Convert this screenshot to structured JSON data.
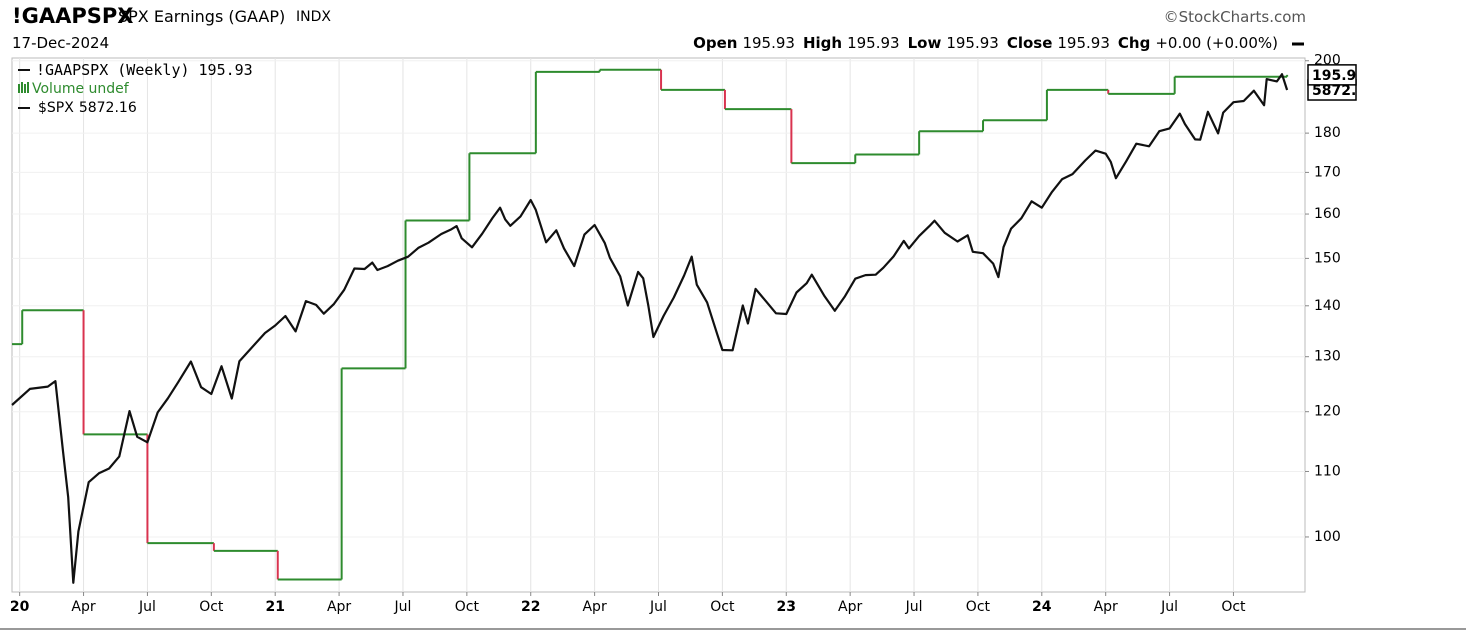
{
  "header": {
    "symbol": "!GAAPSPX",
    "description": "SPX Earnings (GAAP)",
    "exchange": "INDX",
    "date": "17-Dec-2024",
    "copyright": "©StockCharts.com",
    "quote": [
      {
        "label": "Open",
        "value": "195.93"
      },
      {
        "label": "High",
        "value": "195.93"
      },
      {
        "label": "Low",
        "value": "195.93"
      },
      {
        "label": "Close",
        "value": "195.93"
      },
      {
        "label": "Chg",
        "value": "+0.00 (+0.00%)"
      }
    ],
    "legend_note": "Volume undef"
  },
  "chart_data": {
    "type": "line",
    "log_scale": true,
    "grid": true,
    "xlim": [
      2019.97,
      2025.03
    ],
    "xticks": [
      {
        "value": 2020,
        "label": "20"
      },
      {
        "value": 2020.25,
        "label": "Apr"
      },
      {
        "value": 2020.5,
        "label": "Jul"
      },
      {
        "value": 2020.75,
        "label": "Oct"
      },
      {
        "value": 2021,
        "label": "21"
      },
      {
        "value": 2021.25,
        "label": "Apr"
      },
      {
        "value": 2021.5,
        "label": "Jul"
      },
      {
        "value": 2021.75,
        "label": "Oct"
      },
      {
        "value": 2022,
        "label": "22"
      },
      {
        "value": 2022.25,
        "label": "Apr"
      },
      {
        "value": 2022.5,
        "label": "Jul"
      },
      {
        "value": 2022.75,
        "label": "Oct"
      },
      {
        "value": 2023,
        "label": "23"
      },
      {
        "value": 2023.25,
        "label": "Apr"
      },
      {
        "value": 2023.5,
        "label": "Jul"
      },
      {
        "value": 2023.75,
        "label": "Oct"
      },
      {
        "value": 2024,
        "label": "24"
      },
      {
        "value": 2024.25,
        "label": "Apr"
      },
      {
        "value": 2024.5,
        "label": "Jul"
      },
      {
        "value": 2024.75,
        "label": "Oct"
      }
    ],
    "ylim": [
      92.3,
      200.8
    ],
    "yticks": [
      100,
      110,
      120,
      130,
      140,
      150,
      160,
      170,
      180,
      200
    ],
    "y2lim": [
      2265,
      6240
    ],
    "series": [
      {
        "name": "!GAAPSPX (Weekly)",
        "style": "step",
        "color": "#2e8b2e",
        "down_color": "#d9334f",
        "x": [
          2019.97,
          2020.01,
          2020.25,
          2020.5,
          2020.76,
          2021.01,
          2021.26,
          2021.51,
          2021.76,
          2022.02,
          2022.27,
          2022.51,
          2022.76,
          2023.02,
          2023.27,
          2023.52,
          2023.77,
          2024.02,
          2024.26,
          2024.52,
          2024.96
        ],
        "values": [
          132.4,
          139.1,
          116.1,
          99.1,
          98.0,
          94.0,
          127.8,
          158.5,
          174.8,
          196.8,
          197.4,
          191.7,
          186.4,
          172.3,
          174.5,
          180.5,
          183.4,
          191.7,
          190.6,
          195.4,
          195.93
        ]
      },
      {
        "name": "$SPX",
        "axis": "y2",
        "color": "#111111",
        "x": [
          2019.97,
          2020.04,
          2020.11,
          2020.14,
          2020.17,
          2020.19,
          2020.21,
          2020.23,
          2020.27,
          2020.31,
          2020.35,
          2020.39,
          2020.43,
          2020.46,
          2020.5,
          2020.54,
          2020.58,
          2020.62,
          2020.67,
          2020.71,
          2020.75,
          2020.79,
          2020.83,
          2020.86,
          2020.9,
          2020.96,
          2021.0,
          2021.04,
          2021.08,
          2021.12,
          2021.16,
          2021.19,
          2021.23,
          2021.27,
          2021.31,
          2021.35,
          2021.38,
          2021.4,
          2021.44,
          2021.48,
          2021.52,
          2021.56,
          2021.6,
          2021.65,
          2021.69,
          2021.71,
          2021.73,
          2021.77,
          2021.81,
          2021.85,
          2021.88,
          2021.9,
          2021.92,
          2021.96,
          2022.0,
          2022.02,
          2022.06,
          2022.1,
          2022.13,
          2022.17,
          2022.21,
          2022.25,
          2022.29,
          2022.31,
          2022.35,
          2022.38,
          2022.42,
          2022.44,
          2022.46,
          2022.48,
          2022.52,
          2022.56,
          2022.6,
          2022.63,
          2022.65,
          2022.69,
          2022.73,
          2022.75,
          2022.79,
          2022.83,
          2022.85,
          2022.88,
          2022.92,
          2022.96,
          2023.0,
          2023.04,
          2023.08,
          2023.1,
          2023.15,
          2023.19,
          2023.23,
          2023.27,
          2023.31,
          2023.35,
          2023.38,
          2023.42,
          2023.46,
          2023.48,
          2023.52,
          2023.56,
          2023.58,
          2023.62,
          2023.67,
          2023.71,
          2023.73,
          2023.77,
          2023.81,
          2023.83,
          2023.85,
          2023.88,
          2023.92,
          2023.96,
          2024.0,
          2024.04,
          2024.08,
          2024.12,
          2024.17,
          2024.21,
          2024.25,
          2024.27,
          2024.29,
          2024.33,
          2024.37,
          2024.42,
          2024.46,
          2024.5,
          2024.54,
          2024.56,
          2024.6,
          2024.62,
          2024.65,
          2024.69,
          2024.71,
          2024.75,
          2024.79,
          2024.83,
          2024.87,
          2024.88,
          2024.92,
          2024.94,
          2024.96
        ],
        "values": [
          3230,
          3330,
          3345,
          3380,
          2954,
          2711,
          2305,
          2541,
          2790,
          2837,
          2863,
          2930,
          3193,
          3041,
          3009,
          3185,
          3271,
          3372,
          3508,
          3341,
          3298,
          3477,
          3270,
          3510,
          3585,
          3703,
          3756,
          3824,
          3714,
          3934,
          3906,
          3841,
          3913,
          4019,
          4185,
          4181,
          4232,
          4173,
          4204,
          4247,
          4280,
          4352,
          4395,
          4468,
          4509,
          4536,
          4432,
          4357,
          4471,
          4605,
          4697,
          4594,
          4538,
          4620,
          4766,
          4677,
          4398,
          4500,
          4348,
          4204,
          4463,
          4545,
          4392,
          4271,
          4123,
          3901,
          4158,
          4108,
          3901,
          3675,
          3825,
          3961,
          4130,
          4280,
          4058,
          3924,
          3693,
          3585,
          3583,
          3901,
          3770,
          4026,
          3934,
          3844,
          3839,
          3999,
          4070,
          4136,
          3970,
          3862,
          3971,
          4105,
          4133,
          4136,
          4191,
          4282,
          4410,
          4348,
          4450,
          4536,
          4582,
          4478,
          4405,
          4457,
          4320,
          4308,
          4224,
          4117,
          4358,
          4514,
          4604,
          4754,
          4697,
          4840,
          4959,
          5006,
          5137,
          5234,
          5204,
          5123,
          4967,
          5128,
          5303,
          5277,
          5431,
          5460,
          5615,
          5505,
          5347,
          5344,
          5634,
          5408,
          5626,
          5738,
          5751,
          5864,
          5705,
          5995,
          5969,
          6051,
          5872.16
        ]
      }
    ]
  }
}
